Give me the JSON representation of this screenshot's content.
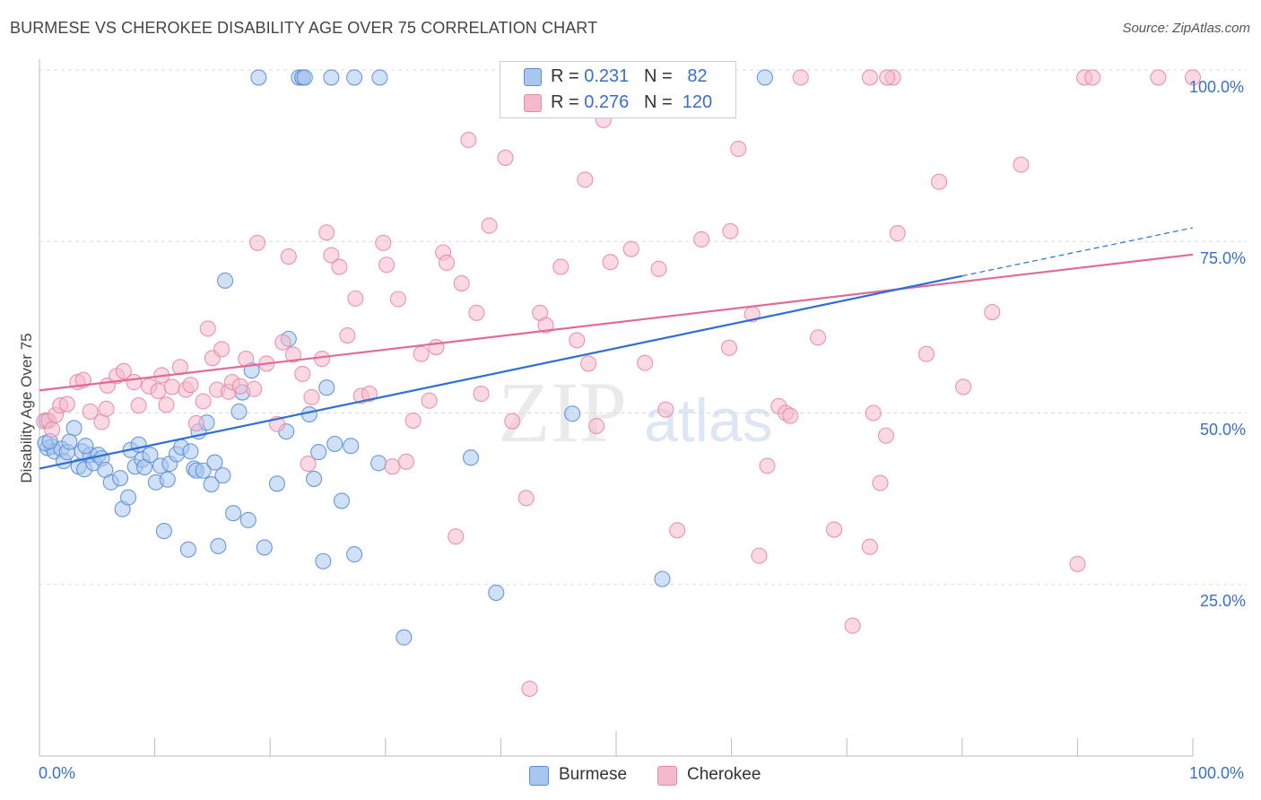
{
  "title": "BURMESE VS CHEROKEE DISABILITY AGE OVER 75 CORRELATION CHART",
  "source": "Source: ZipAtlas.com",
  "legend": {
    "r_label": "R =",
    "n_label": "N =",
    "burmese": {
      "r": "0.231",
      "n": "82"
    },
    "cherokee": {
      "r": "0.276",
      "n": "120"
    }
  },
  "watermark": {
    "zip": "ZIP",
    "atlas": "atlas"
  },
  "colors": {
    "burmese_fill": "#a9c6ef",
    "burmese_stroke": "#5b8ed8",
    "burmese_line": "#2d6fd6",
    "cherokee_fill": "#f5b9cb",
    "cherokee_stroke": "#e889a8",
    "cherokee_line": "#e06b97",
    "tick_label": "#3a6fc9"
  },
  "chart_data": {
    "type": "scatter",
    "title": "BURMESE VS CHEROKEE DISABILITY AGE OVER 75 CORRELATION CHART",
    "xlabel": "",
    "ylabel": "Disability Age Over 75",
    "x_tick_labels": [
      "0.0%",
      "100.0%"
    ],
    "y_tick_labels": [
      "100.0%",
      "75.0%",
      "50.0%",
      "25.0%"
    ],
    "xlim": [
      0,
      100
    ],
    "ylim": [
      0,
      100
    ],
    "grid": "horizontal dashed",
    "legend_position": "top-center",
    "bottom_legend": [
      "Burmese",
      "Cherokee"
    ],
    "series": [
      {
        "name": "Burmese",
        "r": 0.231,
        "n": 82,
        "trend": {
          "x0": 0,
          "y0": 41.9,
          "x1": 100,
          "y1": 77.0,
          "solid_until": 80
        },
        "points": [
          [
            0.6,
            48.9
          ],
          [
            0.7,
            44.9
          ],
          [
            1.1,
            45.1
          ],
          [
            1.3,
            44.4
          ],
          [
            1.9,
            44.8
          ],
          [
            2.1,
            43.0
          ],
          [
            2.4,
            44.3
          ],
          [
            3.0,
            47.8
          ],
          [
            3.4,
            42.2
          ],
          [
            3.7,
            44.4
          ],
          [
            3.9,
            41.8
          ],
          [
            4.4,
            43.9
          ],
          [
            4.7,
            42.7
          ],
          [
            5.1,
            43.9
          ],
          [
            5.4,
            43.4
          ],
          [
            5.7,
            41.7
          ],
          [
            6.2,
            39.9
          ],
          [
            7.0,
            40.5
          ],
          [
            7.2,
            36.0
          ],
          [
            7.7,
            37.7
          ],
          [
            7.9,
            44.6
          ],
          [
            8.3,
            42.2
          ],
          [
            8.9,
            43.2
          ],
          [
            9.1,
            42.1
          ],
          [
            9.6,
            43.9
          ],
          [
            10.1,
            39.9
          ],
          [
            10.5,
            42.3
          ],
          [
            10.8,
            32.8
          ],
          [
            11.1,
            40.3
          ],
          [
            11.3,
            42.6
          ],
          [
            11.9,
            44.0
          ],
          [
            12.3,
            45.0
          ],
          [
            12.9,
            30.1
          ],
          [
            13.1,
            44.4
          ],
          [
            13.4,
            41.9
          ],
          [
            13.6,
            41.6
          ],
          [
            13.8,
            47.3
          ],
          [
            14.2,
            41.6
          ],
          [
            14.5,
            48.6
          ],
          [
            14.9,
            39.6
          ],
          [
            15.2,
            42.8
          ],
          [
            15.5,
            30.6
          ],
          [
            15.9,
            40.9
          ],
          [
            16.1,
            69.3
          ],
          [
            16.8,
            35.4
          ],
          [
            17.3,
            50.2
          ],
          [
            17.6,
            53.0
          ],
          [
            18.1,
            34.4
          ],
          [
            18.4,
            56.2
          ],
          [
            19.5,
            30.4
          ],
          [
            20.6,
            39.7
          ],
          [
            21.4,
            47.3
          ],
          [
            21.6,
            60.8
          ],
          [
            23.4,
            49.8
          ],
          [
            23.8,
            40.4
          ],
          [
            24.2,
            44.3
          ],
          [
            24.6,
            28.4
          ],
          [
            24.9,
            53.7
          ],
          [
            25.6,
            45.5
          ],
          [
            26.2,
            37.2
          ],
          [
            27.0,
            45.2
          ],
          [
            27.3,
            29.4
          ],
          [
            29.4,
            42.7
          ],
          [
            31.6,
            17.3
          ],
          [
            37.4,
            43.5
          ],
          [
            39.6,
            23.8
          ],
          [
            46.2,
            49.9
          ],
          [
            54.0,
            25.8
          ],
          [
            19.0,
            98.9
          ],
          [
            22.5,
            98.9
          ],
          [
            22.8,
            98.9
          ],
          [
            25.3,
            98.9
          ],
          [
            27.3,
            98.9
          ],
          [
            29.5,
            98.9
          ],
          [
            62.9,
            98.9
          ],
          [
            22.8,
            98.9
          ],
          [
            23.0,
            98.9
          ],
          [
            0.5,
            45.6
          ],
          [
            0.9,
            45.9
          ],
          [
            2.6,
            45.8
          ],
          [
            4.0,
            45.2
          ],
          [
            8.6,
            45.4
          ]
        ]
      },
      {
        "name": "Cherokee",
        "r": 0.276,
        "n": 120,
        "trend": {
          "x0": 0,
          "y0": 53.3,
          "x1": 100,
          "y1": 73.1,
          "solid_until": 100
        },
        "points": [
          [
            0.4,
            48.8
          ],
          [
            0.8,
            48.9
          ],
          [
            1.1,
            47.6
          ],
          [
            1.4,
            49.7
          ],
          [
            1.8,
            51.1
          ],
          [
            2.4,
            51.3
          ],
          [
            3.3,
            54.5
          ],
          [
            3.8,
            54.8
          ],
          [
            4.4,
            50.2
          ],
          [
            5.4,
            48.7
          ],
          [
            5.8,
            50.6
          ],
          [
            5.9,
            54.0
          ],
          [
            6.7,
            55.4
          ],
          [
            7.3,
            56.1
          ],
          [
            8.2,
            54.5
          ],
          [
            8.6,
            51.1
          ],
          [
            9.5,
            53.9
          ],
          [
            10.3,
            53.2
          ],
          [
            10.6,
            55.5
          ],
          [
            11.0,
            51.2
          ],
          [
            11.5,
            53.8
          ],
          [
            12.2,
            56.7
          ],
          [
            12.7,
            53.4
          ],
          [
            13.1,
            54.1
          ],
          [
            13.6,
            48.5
          ],
          [
            14.2,
            51.7
          ],
          [
            14.6,
            62.3
          ],
          [
            15.0,
            58.0
          ],
          [
            15.4,
            53.4
          ],
          [
            15.8,
            59.3
          ],
          [
            16.4,
            53.1
          ],
          [
            16.7,
            54.5
          ],
          [
            17.4,
            53.9
          ],
          [
            17.9,
            57.9
          ],
          [
            18.6,
            53.5
          ],
          [
            18.9,
            74.8
          ],
          [
            19.7,
            57.2
          ],
          [
            20.6,
            48.4
          ],
          [
            21.1,
            60.3
          ],
          [
            21.6,
            72.8
          ],
          [
            22.0,
            58.5
          ],
          [
            22.8,
            55.7
          ],
          [
            23.3,
            42.6
          ],
          [
            23.6,
            52.3
          ],
          [
            24.5,
            57.9
          ],
          [
            24.9,
            76.3
          ],
          [
            25.3,
            73.0
          ],
          [
            26.0,
            71.3
          ],
          [
            26.7,
            61.3
          ],
          [
            27.4,
            66.7
          ],
          [
            27.9,
            52.5
          ],
          [
            28.6,
            52.8
          ],
          [
            29.8,
            74.8
          ],
          [
            30.1,
            71.6
          ],
          [
            30.6,
            42.2
          ],
          [
            31.1,
            66.6
          ],
          [
            31.8,
            42.9
          ],
          [
            32.4,
            48.9
          ],
          [
            33.1,
            58.6
          ],
          [
            33.8,
            51.8
          ],
          [
            34.4,
            59.6
          ],
          [
            35.0,
            73.4
          ],
          [
            35.3,
            71.9
          ],
          [
            36.1,
            32.0
          ],
          [
            36.6,
            68.9
          ],
          [
            37.2,
            89.8
          ],
          [
            37.9,
            64.6
          ],
          [
            38.3,
            52.8
          ],
          [
            39.0,
            77.3
          ],
          [
            40.4,
            87.2
          ],
          [
            41.0,
            48.8
          ],
          [
            42.2,
            37.6
          ],
          [
            42.5,
            9.8
          ],
          [
            43.4,
            64.6
          ],
          [
            43.9,
            62.8
          ],
          [
            45.2,
            71.3
          ],
          [
            46.6,
            60.6
          ],
          [
            47.3,
            84.0
          ],
          [
            47.6,
            57.2
          ],
          [
            48.3,
            48.1
          ],
          [
            48.9,
            92.7
          ],
          [
            49.5,
            72.0
          ],
          [
            51.3,
            73.9
          ],
          [
            52.5,
            57.3
          ],
          [
            53.7,
            71.0
          ],
          [
            54.3,
            50.5
          ],
          [
            55.3,
            32.9
          ],
          [
            57.4,
            75.3
          ],
          [
            59.8,
            59.5
          ],
          [
            59.9,
            76.5
          ],
          [
            60.6,
            88.5
          ],
          [
            61.8,
            64.4
          ],
          [
            62.4,
            29.2
          ],
          [
            63.1,
            42.3
          ],
          [
            64.1,
            51.0
          ],
          [
            64.7,
            50.0
          ],
          [
            65.1,
            49.6
          ],
          [
            67.5,
            61.0
          ],
          [
            68.9,
            33.0
          ],
          [
            70.5,
            19.0
          ],
          [
            72.0,
            30.5
          ],
          [
            72.3,
            50.0
          ],
          [
            72.9,
            39.8
          ],
          [
            73.4,
            46.7
          ],
          [
            74.4,
            76.2
          ],
          [
            76.9,
            58.6
          ],
          [
            78.0,
            83.7
          ],
          [
            80.1,
            53.8
          ],
          [
            82.6,
            64.7
          ],
          [
            85.1,
            86.2
          ],
          [
            90.0,
            28.0
          ],
          [
            90.6,
            98.9
          ],
          [
            91.3,
            98.9
          ],
          [
            100,
            98.9
          ],
          [
            74.0,
            98.9
          ],
          [
            72.0,
            98.9
          ],
          [
            66.0,
            98.9
          ],
          [
            52.0,
            98.9
          ],
          [
            97.0,
            98.9
          ],
          [
            73.5,
            98.9
          ]
        ]
      }
    ]
  }
}
